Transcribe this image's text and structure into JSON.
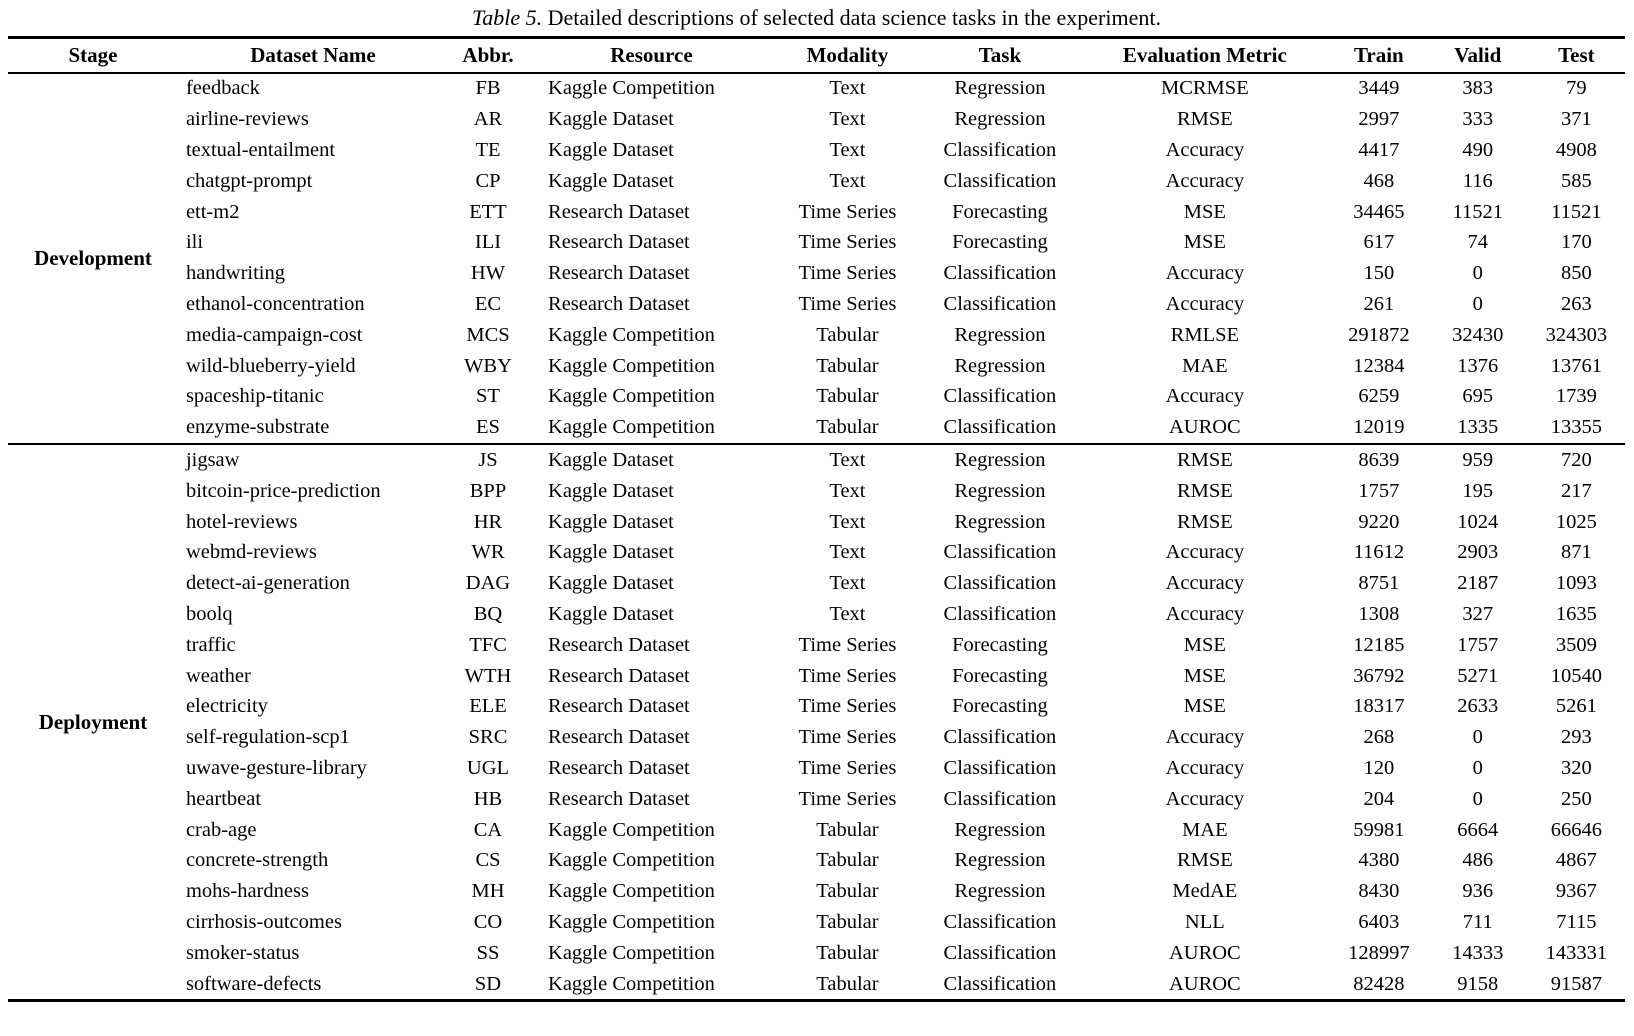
{
  "caption": {
    "label": "Table 5.",
    "text": "Detailed descriptions of selected data science tasks in the experiment."
  },
  "table": {
    "columns": [
      "Stage",
      "Dataset Name",
      "Abbr.",
      "Resource",
      "Modality",
      "Task",
      "Evaluation Metric",
      "Train",
      "Valid",
      "Test"
    ],
    "sections": [
      {
        "stage": "Development",
        "rows": [
          [
            "feedback",
            "FB",
            "Kaggle Competition",
            "Text",
            "Regression",
            "MCRMSE",
            "3449",
            "383",
            "79"
          ],
          [
            "airline-reviews",
            "AR",
            "Kaggle Dataset",
            "Text",
            "Regression",
            "RMSE",
            "2997",
            "333",
            "371"
          ],
          [
            "textual-entailment",
            "TE",
            "Kaggle Dataset",
            "Text",
            "Classification",
            "Accuracy",
            "4417",
            "490",
            "4908"
          ],
          [
            "chatgpt-prompt",
            "CP",
            "Kaggle Dataset",
            "Text",
            "Classification",
            "Accuracy",
            "468",
            "116",
            "585"
          ],
          [
            "ett-m2",
            "ETT",
            "Research Dataset",
            "Time Series",
            "Forecasting",
            "MSE",
            "34465",
            "11521",
            "11521"
          ],
          [
            "ili",
            "ILI",
            "Research Dataset",
            "Time Series",
            "Forecasting",
            "MSE",
            "617",
            "74",
            "170"
          ],
          [
            "handwriting",
            "HW",
            "Research Dataset",
            "Time Series",
            "Classification",
            "Accuracy",
            "150",
            "0",
            "850"
          ],
          [
            "ethanol-concentration",
            "EC",
            "Research Dataset",
            "Time Series",
            "Classification",
            "Accuracy",
            "261",
            "0",
            "263"
          ],
          [
            "media-campaign-cost",
            "MCS",
            "Kaggle Competition",
            "Tabular",
            "Regression",
            "RMLSE",
            "291872",
            "32430",
            "324303"
          ],
          [
            "wild-blueberry-yield",
            "WBY",
            "Kaggle Competition",
            "Tabular",
            "Regression",
            "MAE",
            "12384",
            "1376",
            "13761"
          ],
          [
            "spaceship-titanic",
            "ST",
            "Kaggle Competition",
            "Tabular",
            "Classification",
            "Accuracy",
            "6259",
            "695",
            "1739"
          ],
          [
            "enzyme-substrate",
            "ES",
            "Kaggle Competition",
            "Tabular",
            "Classification",
            "AUROC",
            "12019",
            "1335",
            "13355"
          ]
        ]
      },
      {
        "stage": "Deployment",
        "rows": [
          [
            "jigsaw",
            "JS",
            "Kaggle Dataset",
            "Text",
            "Regression",
            "RMSE",
            "8639",
            "959",
            "720"
          ],
          [
            "bitcoin-price-prediction",
            "BPP",
            "Kaggle Dataset",
            "Text",
            "Regression",
            "RMSE",
            "1757",
            "195",
            "217"
          ],
          [
            "hotel-reviews",
            "HR",
            "Kaggle Dataset",
            "Text",
            "Regression",
            "RMSE",
            "9220",
            "1024",
            "1025"
          ],
          [
            "webmd-reviews",
            "WR",
            "Kaggle Dataset",
            "Text",
            "Classification",
            "Accuracy",
            "11612",
            "2903",
            "871"
          ],
          [
            "detect-ai-generation",
            "DAG",
            "Kaggle Dataset",
            "Text",
            "Classification",
            "Accuracy",
            "8751",
            "2187",
            "1093"
          ],
          [
            "boolq",
            "BQ",
            "Kaggle Dataset",
            "Text",
            "Classification",
            "Accuracy",
            "1308",
            "327",
            "1635"
          ],
          [
            "traffic",
            "TFC",
            "Research Dataset",
            "Time Series",
            "Forecasting",
            "MSE",
            "12185",
            "1757",
            "3509"
          ],
          [
            "weather",
            "WTH",
            "Research Dataset",
            "Time Series",
            "Forecasting",
            "MSE",
            "36792",
            "5271",
            "10540"
          ],
          [
            "electricity",
            "ELE",
            "Research Dataset",
            "Time Series",
            "Forecasting",
            "MSE",
            "18317",
            "2633",
            "5261"
          ],
          [
            "self-regulation-scp1",
            "SRC",
            "Research Dataset",
            "Time Series",
            "Classification",
            "Accuracy",
            "268",
            "0",
            "293"
          ],
          [
            "uwave-gesture-library",
            "UGL",
            "Research Dataset",
            "Time Series",
            "Classification",
            "Accuracy",
            "120",
            "0",
            "320"
          ],
          [
            "heartbeat",
            "HB",
            "Research Dataset",
            "Time Series",
            "Classification",
            "Accuracy",
            "204",
            "0",
            "250"
          ],
          [
            "crab-age",
            "CA",
            "Kaggle Competition",
            "Tabular",
            "Regression",
            "MAE",
            "59981",
            "6664",
            "66646"
          ],
          [
            "concrete-strength",
            "CS",
            "Kaggle Competition",
            "Tabular",
            "Regression",
            "RMSE",
            "4380",
            "486",
            "4867"
          ],
          [
            "mohs-hardness",
            "MH",
            "Kaggle Competition",
            "Tabular",
            "Regression",
            "MedAE",
            "8430",
            "936",
            "9367"
          ],
          [
            "cirrhosis-outcomes",
            "CO",
            "Kaggle Competition",
            "Tabular",
            "Classification",
            "NLL",
            "6403",
            "711",
            "7115"
          ],
          [
            "smoker-status",
            "SS",
            "Kaggle Competition",
            "Tabular",
            "Classification",
            "AUROC",
            "128997",
            "14333",
            "143331"
          ],
          [
            "software-defects",
            "SD",
            "Kaggle Competition",
            "Tabular",
            "Classification",
            "AUROC",
            "82428",
            "9158",
            "91587"
          ]
        ]
      }
    ],
    "column_widths_pct": [
      10.51,
      16.7,
      4.95,
      15.27,
      8.97,
      9.89,
      15.46,
      6.06,
      6.18,
      6.01
    ],
    "text_color": "#000000",
    "background_color": "#ffffff"
  }
}
